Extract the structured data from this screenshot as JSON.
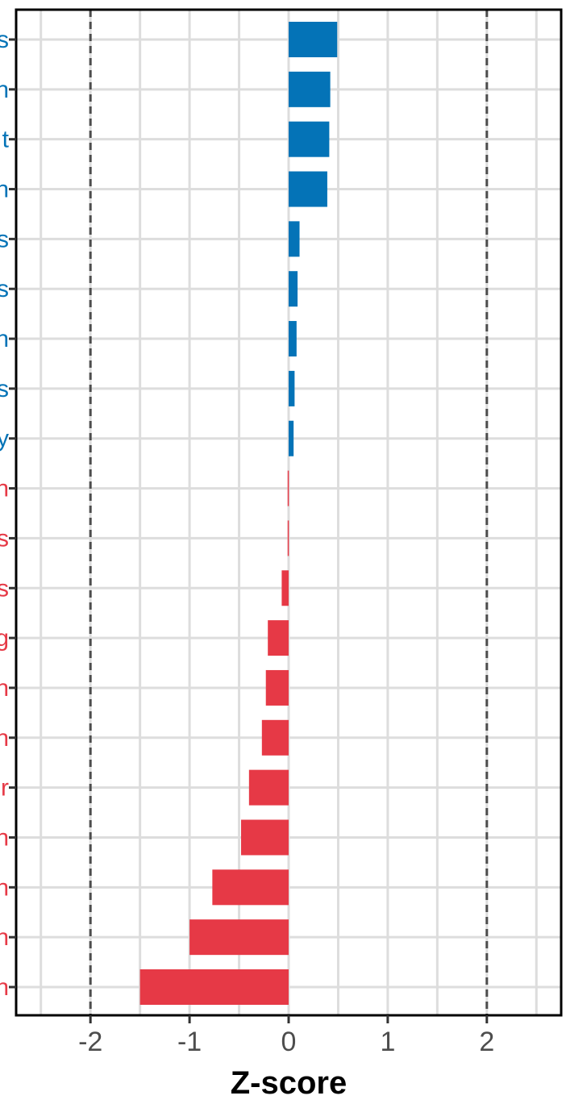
{
  "chart_data": {
    "type": "bar",
    "orientation": "horizontal",
    "xlabel": "Z-score",
    "ylabel": "",
    "xlim": [
      -2.75,
      2.75
    ],
    "xticks": [
      -2,
      -1,
      0,
      1,
      2
    ],
    "reference_lines": [
      -2,
      2
    ],
    "grid": true,
    "categories": [
      "s",
      "n",
      "t",
      "n",
      "s",
      "s",
      "n",
      "s",
      "y",
      "n",
      "s",
      "s",
      "g",
      "n",
      "n",
      "r",
      "n",
      "n",
      "n",
      "n"
    ],
    "values": [
      0.49,
      0.42,
      0.41,
      0.39,
      0.11,
      0.09,
      0.08,
      0.06,
      0.05,
      -0.01,
      -0.01,
      -0.07,
      -0.21,
      -0.23,
      -0.27,
      -0.4,
      -0.48,
      -0.77,
      -1.0,
      -1.5
    ],
    "colors": {
      "positive": "#0473b7",
      "negative": "#e63946"
    }
  }
}
